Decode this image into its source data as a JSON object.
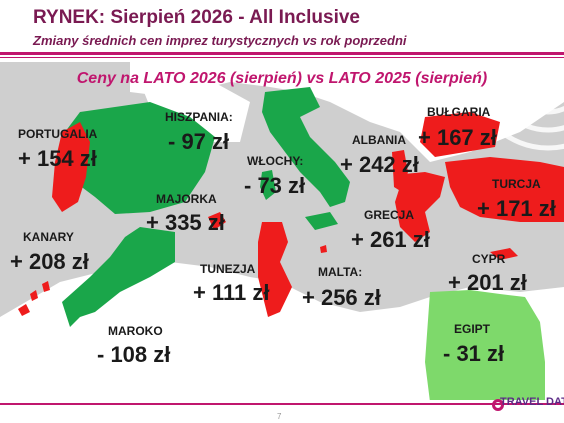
{
  "header": {
    "title": "RYNEK: Sierpień 2026 - All Inclusive",
    "subtitle": "Zmiany średnich cen imprez turystycznych vs rok poprzedni"
  },
  "map_title": "Ceny na LATO 2026 (sierpień) vs  LATO 2025 (sierpień)",
  "colors": {
    "up": "#ee1c1c",
    "down": "#1aa64a",
    "egypt": "#7ed96b",
    "accent": "#c0166e",
    "land": "#ffffff",
    "sea": "#cfcfcf"
  },
  "destinations": {
    "portugalia": {
      "name": "PORTUGALIA",
      "value": "+ 154 zł"
    },
    "hiszpania": {
      "name": "HISZPANIA:",
      "value": "- 97 zł"
    },
    "wlochy": {
      "name": "WŁOCHY:",
      "value": "- 73 zł"
    },
    "albania": {
      "name": "ALBANIA",
      "value": "+ 242 zł"
    },
    "bulgaria": {
      "name": "BUŁGARIA",
      "value": "+ 167 zł"
    },
    "majorka": {
      "name": "MAJORKA",
      "value": "+ 335 zł"
    },
    "turcja": {
      "name": "TURCJA",
      "value": "+ 171 zł"
    },
    "grecja": {
      "name": "GRECJA",
      "value": "+ 261 zł"
    },
    "kanary": {
      "name": "KANARY",
      "value": "+ 208 zł"
    },
    "tunezja": {
      "name": "TUNEZJA",
      "value": "+ 111 zł"
    },
    "malta": {
      "name": "MALTA:",
      "value": "+ 256 zł"
    },
    "cypr": {
      "name": "CYPR",
      "value": "+ 201 zł"
    },
    "maroko": {
      "name": "MAROKO",
      "value": "- 108 zł"
    },
    "egipt": {
      "name": "EGIPT",
      "value": "- 31 zł"
    }
  },
  "footer": {
    "page_number": "7",
    "logo_text": "TRAVEL DATA"
  }
}
